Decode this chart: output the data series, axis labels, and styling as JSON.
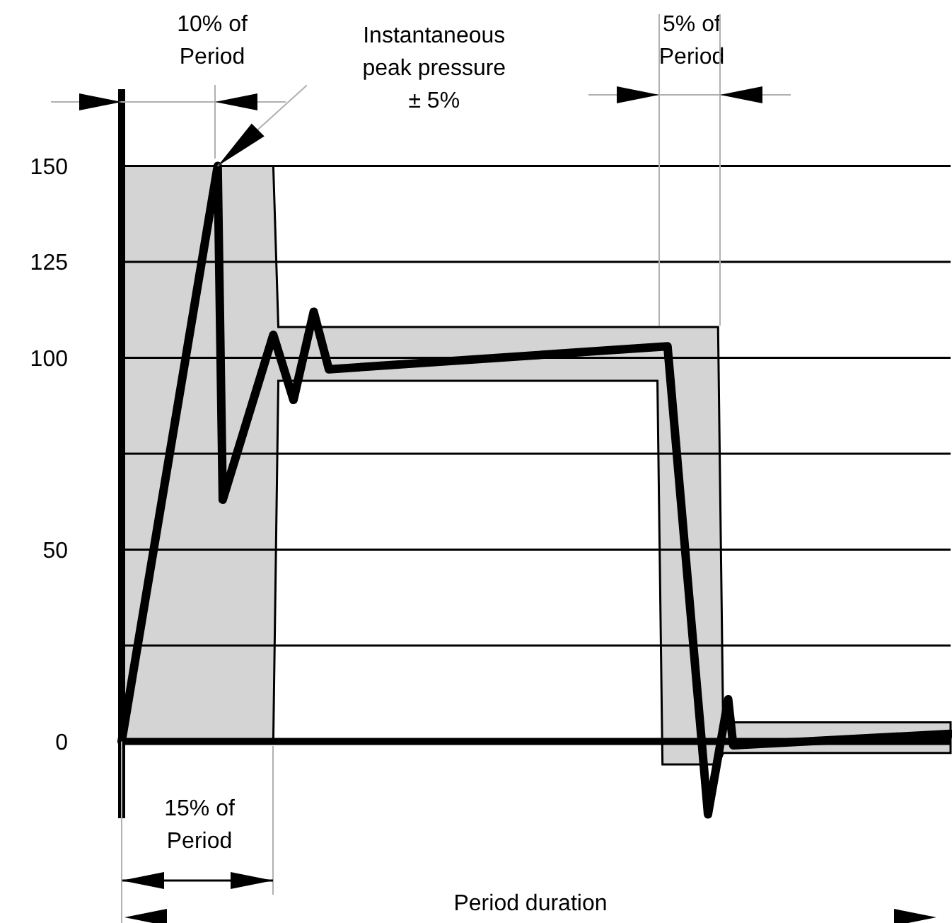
{
  "chart_data": {
    "type": "line",
    "xlabel": "Period duration",
    "ylim": [
      -20,
      170
    ],
    "yticks": [
      0,
      {
        "value": 25,
        "label": null
      },
      50,
      {
        "value": 75,
        "label": null
      },
      100,
      125,
      150
    ],
    "grid": "y",
    "tick_labels": "y",
    "categories": [
      null,
      null,
      null,
      null,
      null,
      null,
      null,
      null,
      null,
      null,
      null,
      null,
      null,
      null,
      null,
      null,
      null,
      null,
      null,
      null,
      null,
      null,
      null,
      null,
      null,
      null,
      null,
      null,
      null,
      null,
      null,
      null,
      null,
      null,
      null,
      null,
      null,
      null,
      null,
      null,
      null,
      null,
      null,
      null,
      null,
      null,
      null,
      null,
      null,
      null,
      null,
      null,
      null,
      null,
      null,
      null,
      null,
      null,
      null,
      null,
      null,
      null,
      null,
      null,
      null,
      null,
      null,
      null,
      null,
      null,
      null,
      null,
      null,
      null,
      null,
      null,
      null,
      null,
      null,
      null,
      null,
      null,
      null,
      null,
      null,
      null,
      null,
      null,
      null,
      null,
      null,
      null,
      null,
      null,
      null,
      null,
      null,
      null,
      null,
      null,
      null,
      null,
      null,
      null,
      null,
      null,
      null,
      null,
      null,
      null,
      null,
      null,
      null,
      null,
      null,
      null,
      null,
      null,
      null,
      null,
      null,
      null,
      null,
      null,
      null,
      null,
      null,
      null,
      null,
      null,
      null,
      null,
      null,
      null,
      null,
      null,
      null,
      null,
      null,
      null,
      null,
      null,
      null,
      null,
      null,
      null,
      null,
      null,
      null,
      null,
      null,
      null,
      null,
      null,
      null,
      null,
      null,
      null,
      null,
      null,
      null,
      null,
      null,
      null,
      null
    ],
    "series": [
      {
        "color": "#000000",
        "values": [
          0,
          null,
          null,
          null,
          null,
          null,
          null,
          null,
          null,
          null,
          null,
          null,
          null,
          null,
          null,
          null,
          null,
          null,
          null,
          150,
          63,
          null,
          null,
          null,
          null,
          null,
          null,
          null,
          null,
          null,
          106,
          null,
          null,
          null,
          89,
          null,
          null,
          null,
          112,
          null,
          null,
          97,
          null,
          null,
          null,
          null,
          null,
          null,
          null,
          null,
          null,
          null,
          null,
          null,
          null,
          null,
          null,
          null,
          null,
          null,
          null,
          null,
          null,
          null,
          null,
          null,
          null,
          null,
          null,
          null,
          null,
          null,
          null,
          null,
          null,
          null,
          null,
          null,
          null,
          null,
          null,
          null,
          null,
          null,
          null,
          null,
          null,
          null,
          null,
          null,
          null,
          null,
          null,
          null,
          null,
          null,
          null,
          null,
          null,
          null,
          null,
          null,
          null,
          null,
          null,
          null,
          null,
          null,
          103,
          null,
          null,
          null,
          null,
          null,
          null,
          null,
          -19,
          null,
          null,
          null,
          11,
          -1,
          null,
          null,
          null,
          null,
          null,
          null,
          null,
          null,
          null,
          null,
          null,
          null,
          null,
          null,
          null,
          null,
          null,
          null,
          null,
          null,
          null,
          null,
          null,
          null,
          null,
          null,
          null,
          null,
          null,
          null,
          null,
          null,
          null,
          null,
          null,
          null,
          null,
          null,
          null,
          null,
          null,
          null,
          2
        ],
        "upper": [
          150,
          150,
          150,
          150,
          150,
          150,
          150,
          150,
          150,
          150,
          150,
          150,
          150,
          150,
          150,
          150,
          150,
          150,
          150,
          150,
          150,
          150,
          150,
          150,
          150,
          150,
          150,
          150,
          150,
          150,
          150,
          108,
          108,
          108,
          108,
          108,
          108,
          108,
          108,
          108,
          108,
          108,
          108,
          108,
          108,
          108,
          108,
          108,
          108,
          108,
          108,
          108,
          108,
          108,
          108,
          108,
          108,
          108,
          108,
          108,
          108,
          108,
          108,
          108,
          108,
          108,
          108,
          108,
          108,
          108,
          108,
          108,
          108,
          108,
          108,
          108,
          108,
          108,
          108,
          108,
          108,
          108,
          108,
          108,
          108,
          108,
          108,
          108,
          108,
          108,
          108,
          108,
          108,
          108,
          108,
          108,
          108,
          108,
          108,
          108,
          108,
          108,
          108,
          108,
          108,
          108,
          108,
          108,
          108,
          108,
          108,
          108,
          108,
          108,
          108,
          108,
          108,
          108,
          108,
          5,
          5,
          5,
          5,
          5,
          5,
          5,
          5,
          5,
          5,
          5,
          5,
          5,
          5,
          5,
          5,
          5,
          5,
          5,
          5,
          5,
          5,
          5,
          5,
          5,
          5,
          5,
          5,
          5,
          5,
          5,
          5,
          5,
          5,
          5,
          5,
          5,
          5,
          5,
          5,
          5,
          5,
          5,
          5,
          5,
          5
        ],
        "lower": [
          0,
          0,
          0,
          0,
          0,
          0,
          0,
          0,
          0,
          0,
          0,
          0,
          0,
          0,
          0,
          0,
          0,
          0,
          0,
          0,
          0,
          0,
          0,
          0,
          0,
          0,
          0,
          0,
          0,
          0,
          0,
          94,
          94,
          94,
          94,
          94,
          94,
          94,
          94,
          94,
          94,
          94,
          94,
          94,
          94,
          94,
          94,
          94,
          94,
          94,
          94,
          94,
          94,
          94,
          94,
          94,
          94,
          94,
          94,
          94,
          94,
          94,
          94,
          94,
          94,
          94,
          94,
          94,
          94,
          94,
          94,
          94,
          94,
          94,
          94,
          94,
          94,
          94,
          94,
          94,
          94,
          94,
          94,
          94,
          94,
          94,
          94,
          94,
          94,
          94,
          94,
          94,
          94,
          94,
          94,
          94,
          94,
          94,
          94,
          94,
          94,
          94,
          94,
          94,
          94,
          94,
          94,
          -6,
          -6,
          -6,
          -6,
          -6,
          -6,
          -6,
          -6,
          -6,
          -6,
          -6,
          -6,
          -3,
          -3,
          -3,
          -3,
          -3,
          -3,
          -3,
          -3,
          -3,
          -3,
          -3,
          -3,
          -3,
          -3,
          -3,
          -3,
          -3,
          -3,
          -3,
          -3,
          -3,
          -3,
          -3,
          -3,
          -3,
          -3,
          -3,
          -3,
          -3,
          -3,
          -3,
          -3,
          -3,
          -3,
          -3,
          -3,
          -3,
          -3,
          -3,
          -3,
          -3,
          -3,
          -3,
          -3,
          -3,
          -3
        ]
      }
    ],
    "ref_lines": [
      {
        "axis": "y",
        "value": 0,
        "color": "#000000"
      }
    ],
    "annotations": [
      "10% of\nPeriod",
      "Instantaneous\npeak pressure\n± 5%",
      "5% of\nPeriod",
      "15% of\nPeriod"
    ]
  }
}
